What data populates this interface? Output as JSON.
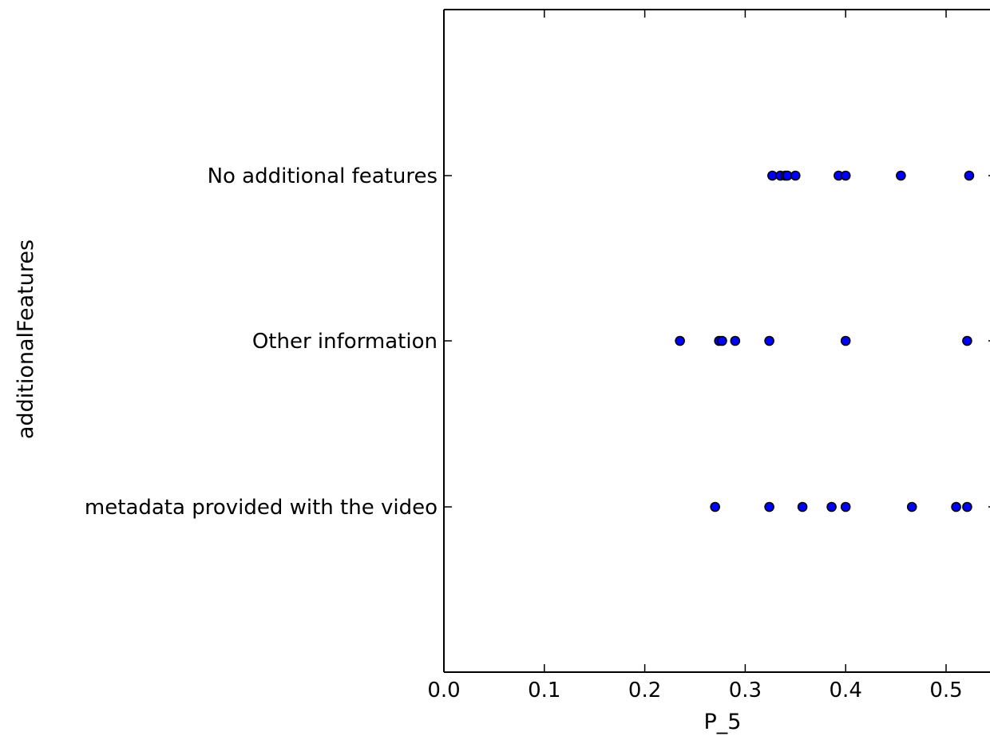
{
  "chart_data": {
    "type": "scatter",
    "xlabel": "P_5",
    "ylabel": "additionalFeatures",
    "xlim": [
      0.0,
      0.55
    ],
    "x_ticks": [
      "0.0",
      "0.1",
      "0.2",
      "0.3",
      "0.4",
      "0.5"
    ],
    "categories": [
      "No additional features",
      "Other information",
      "metadata provided with the video"
    ],
    "marker_color": "#0000ff",
    "marker_edge_color": "#000000",
    "grid": false,
    "legend": "none",
    "series": [
      {
        "category": "No additional features",
        "x": [
          0.327,
          0.335,
          0.34,
          0.342,
          0.35,
          0.393,
          0.4,
          0.455,
          0.523
        ]
      },
      {
        "category": "Other information",
        "x": [
          0.235,
          0.274,
          0.277,
          0.29,
          0.324,
          0.4,
          0.521
        ]
      },
      {
        "category": "metadata provided with the video",
        "x": [
          0.27,
          0.324,
          0.357,
          0.386,
          0.4,
          0.466,
          0.51,
          0.521
        ]
      }
    ]
  }
}
